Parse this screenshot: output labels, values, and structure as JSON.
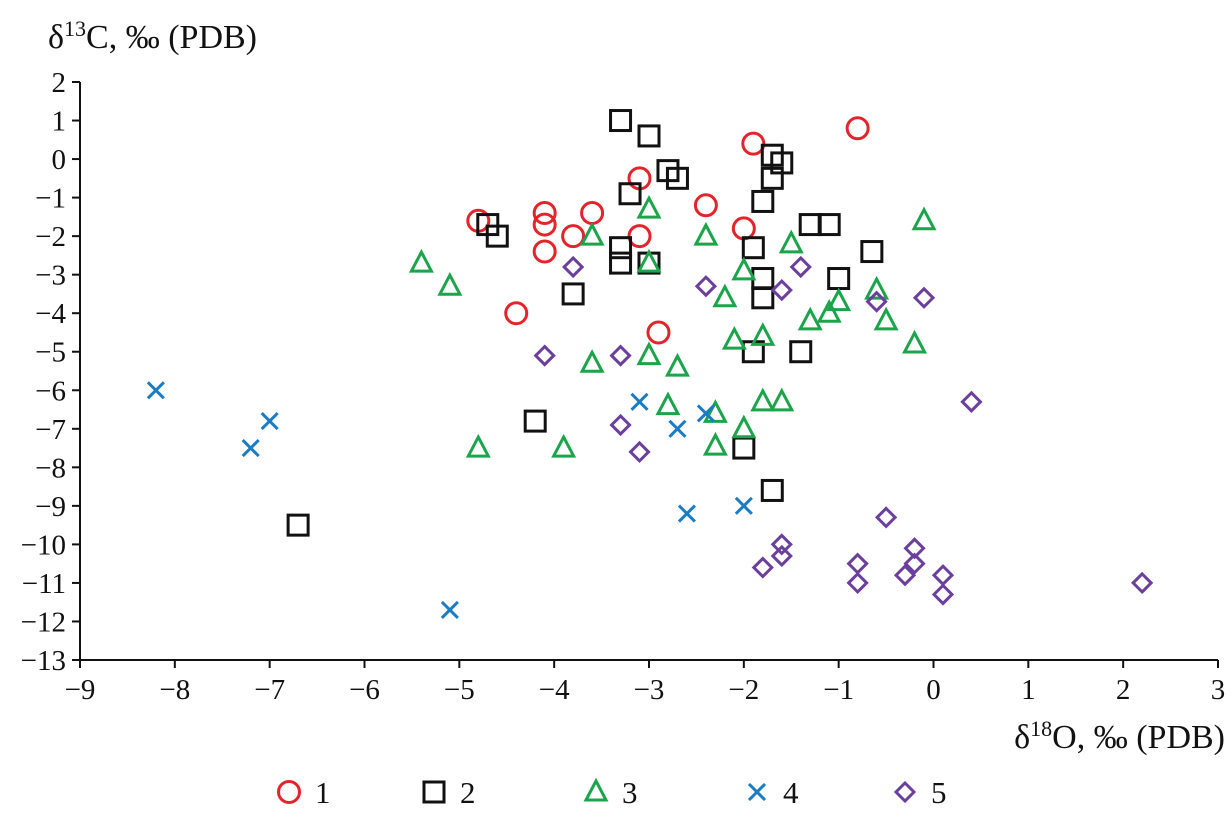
{
  "chart_data": {
    "type": "scatter",
    "ylabel": {
      "prefix": "δ",
      "sup": "13",
      "suffix": "C, ‰ (PDB)"
    },
    "xlabel": {
      "prefix": "δ",
      "sup": "18",
      "suffix": "O, ‰ (PDB)"
    },
    "xlim": [
      -9,
      3
    ],
    "ylim": [
      -13,
      2
    ],
    "xticks": [
      -9,
      -8,
      -7,
      -6,
      -5,
      -4,
      -3,
      -2,
      -1,
      0,
      1,
      2,
      3
    ],
    "yticks": [
      2,
      1,
      0,
      -1,
      -2,
      -3,
      -4,
      -5,
      -6,
      -7,
      -8,
      -9,
      -10,
      -11,
      -12,
      -13
    ],
    "grid": false,
    "legend_position": "bottom",
    "series": [
      {
        "name": "1",
        "marker": "circle",
        "color": "#e3242b",
        "points": [
          [
            -4.8,
            -1.6
          ],
          [
            -4.1,
            -1.4
          ],
          [
            -4.1,
            -1.7
          ],
          [
            -4.1,
            -2.4
          ],
          [
            -3.8,
            -2.0
          ],
          [
            -3.6,
            -1.4
          ],
          [
            -3.1,
            -0.5
          ],
          [
            -3.1,
            -2.0
          ],
          [
            -2.9,
            -4.5
          ],
          [
            -2.4,
            -1.2
          ],
          [
            -2.0,
            -1.8
          ],
          [
            -1.9,
            0.4
          ],
          [
            -0.8,
            0.8
          ],
          [
            -4.4,
            -4.0
          ]
        ]
      },
      {
        "name": "2",
        "marker": "square",
        "color": "#111111",
        "points": [
          [
            -3.3,
            1.0
          ],
          [
            -3.0,
            0.6
          ],
          [
            -4.7,
            -1.7
          ],
          [
            -4.6,
            -2.0
          ],
          [
            -3.2,
            -0.9
          ],
          [
            -2.8,
            -0.3
          ],
          [
            -2.7,
            -0.5
          ],
          [
            -3.3,
            -2.3
          ],
          [
            -3.3,
            -2.7
          ],
          [
            -3.0,
            -2.7
          ],
          [
            -3.8,
            -3.5
          ],
          [
            -1.7,
            0.1
          ],
          [
            -1.6,
            -0.1
          ],
          [
            -1.7,
            -0.5
          ],
          [
            -1.8,
            -1.1
          ],
          [
            -1.9,
            -2.3
          ],
          [
            -1.8,
            -3.1
          ],
          [
            -1.8,
            -3.6
          ],
          [
            -1.9,
            -5.0
          ],
          [
            -1.3,
            -1.7
          ],
          [
            -1.1,
            -1.7
          ],
          [
            -1.0,
            -3.1
          ],
          [
            -0.65,
            -2.4
          ],
          [
            -1.4,
            -5.0
          ],
          [
            -4.2,
            -6.8
          ],
          [
            -2.0,
            -7.5
          ],
          [
            -1.7,
            -8.6
          ],
          [
            -6.7,
            -9.5
          ]
        ]
      },
      {
        "name": "3",
        "marker": "triangle",
        "color": "#1ba44a",
        "points": [
          [
            -5.4,
            -2.7
          ],
          [
            -5.1,
            -3.3
          ],
          [
            -4.8,
            -7.5
          ],
          [
            -3.9,
            -7.5
          ],
          [
            -3.6,
            -2.0
          ],
          [
            -3.6,
            -5.3
          ],
          [
            -3.0,
            -1.3
          ],
          [
            -3.0,
            -2.7
          ],
          [
            -3.0,
            -5.1
          ],
          [
            -2.7,
            -5.4
          ],
          [
            -2.8,
            -6.4
          ],
          [
            -2.4,
            -2.0
          ],
          [
            -2.3,
            -6.6
          ],
          [
            -2.3,
            -7.45
          ],
          [
            -2.0,
            -2.9
          ],
          [
            -2.0,
            -7.0
          ],
          [
            -2.2,
            -3.6
          ],
          [
            -2.1,
            -4.7
          ],
          [
            -1.8,
            -4.6
          ],
          [
            -1.8,
            -6.3
          ],
          [
            -1.6,
            -6.3
          ],
          [
            -1.5,
            -2.2
          ],
          [
            -1.3,
            -4.2
          ],
          [
            -1.1,
            -4.0
          ],
          [
            -1.0,
            -3.7
          ],
          [
            -0.6,
            -3.4
          ],
          [
            -0.5,
            -4.2
          ],
          [
            -0.2,
            -4.8
          ],
          [
            -0.1,
            -1.6
          ]
        ]
      },
      {
        "name": "4",
        "marker": "x",
        "color": "#1a7cc4",
        "points": [
          [
            -8.2,
            -6.0
          ],
          [
            -7.2,
            -7.5
          ],
          [
            -7.0,
            -6.8
          ],
          [
            -5.1,
            -11.7
          ],
          [
            -3.1,
            -6.3
          ],
          [
            -2.7,
            -7.0
          ],
          [
            -2.4,
            -6.6
          ],
          [
            -2.6,
            -9.2
          ],
          [
            -2.0,
            -9.0
          ]
        ]
      },
      {
        "name": "5",
        "marker": "diamond",
        "color": "#6b3f9e",
        "points": [
          [
            -3.8,
            -2.8
          ],
          [
            -4.1,
            -5.1
          ],
          [
            -3.3,
            -5.1
          ],
          [
            -3.3,
            -6.9
          ],
          [
            -3.1,
            -7.6
          ],
          [
            -2.4,
            -3.3
          ],
          [
            -1.6,
            -3.4
          ],
          [
            -1.4,
            -2.8
          ],
          [
            -0.6,
            -3.7
          ],
          [
            -0.1,
            -3.6
          ],
          [
            0.4,
            -6.3
          ],
          [
            -0.5,
            -9.3
          ],
          [
            -1.6,
            -10.0
          ],
          [
            -1.6,
            -10.3
          ],
          [
            -1.8,
            -10.6
          ],
          [
            -0.8,
            -10.5
          ],
          [
            -0.8,
            -11.0
          ],
          [
            -0.2,
            -10.1
          ],
          [
            -0.2,
            -10.5
          ],
          [
            -0.3,
            -10.8
          ],
          [
            0.1,
            -10.8
          ],
          [
            0.1,
            -11.3
          ],
          [
            2.2,
            -11.0
          ]
        ]
      }
    ]
  }
}
